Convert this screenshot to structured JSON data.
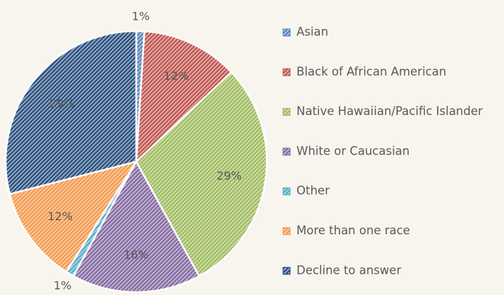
{
  "chart_data": {
    "type": "pie",
    "categories": [
      "Asian",
      "Black of African American",
      "Native Hawaiian/Pacific Islander",
      "White or Caucasian",
      "Other",
      "More than one race",
      "Decline to answer"
    ],
    "values": [
      1,
      12,
      29,
      16,
      1,
      12,
      29
    ],
    "value_labels": [
      "1%",
      "12%",
      "29%",
      "16%",
      "1%",
      "12%",
      "29%"
    ],
    "colors": [
      "#4f81bd",
      "#c0504d",
      "#9bbb59",
      "#8064a2",
      "#4bacc6",
      "#f79646",
      "#1f497d"
    ],
    "legend": "right"
  }
}
